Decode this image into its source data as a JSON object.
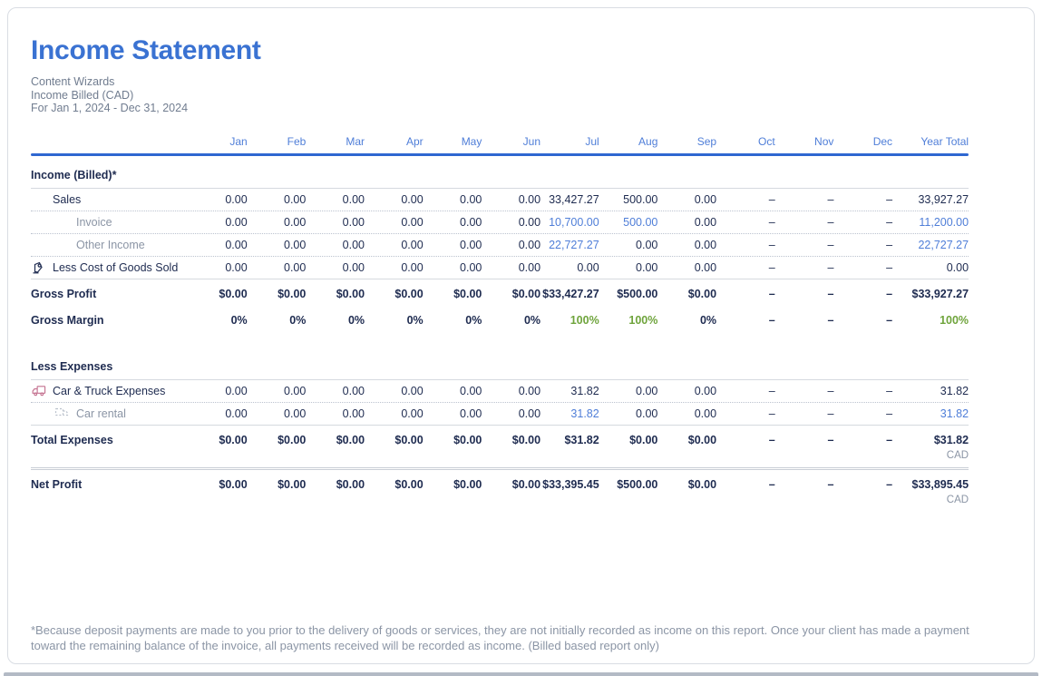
{
  "report": {
    "title": "Income Statement",
    "company": "Content Wizards",
    "basis": "Income Billed (CAD)",
    "period": "For Jan 1, 2024 - Dec 31, 2024"
  },
  "colors": {
    "accent_blue": "#3a72d2",
    "header_blue": "#4f7ed8",
    "underline_blue": "#2f67d1",
    "navy_text": "#1e2b50",
    "link_blue": "#4f7ed8",
    "green": "#6fa43c",
    "muted_gray": "#8b95a5",
    "truck_pink": "#c4708f"
  },
  "table": {
    "columns": [
      "Jan",
      "Feb",
      "Mar",
      "Apr",
      "May",
      "Jun",
      "Jul",
      "Aug",
      "Sep",
      "Oct",
      "Nov",
      "Dec",
      "Year Total"
    ],
    "rows": [
      {
        "label": "Income (Billed)*",
        "style": "section",
        "icon": "none",
        "values": [],
        "links": [],
        "greens": [],
        "cad": "",
        "sep": "solid"
      },
      {
        "label": "Sales",
        "style": "data",
        "icon": "none",
        "values": [
          "0.00",
          "0.00",
          "0.00",
          "0.00",
          "0.00",
          "0.00",
          "33,427.27",
          "500.00",
          "0.00",
          "–",
          "–",
          "–",
          "33,927.27"
        ],
        "links": [],
        "greens": [],
        "cad": "",
        "sep": "dotted"
      },
      {
        "label": "Invoice",
        "style": "sub",
        "icon": "none",
        "values": [
          "0.00",
          "0.00",
          "0.00",
          "0.00",
          "0.00",
          "0.00",
          "10,700.00",
          "500.00",
          "0.00",
          "–",
          "–",
          "–",
          "11,200.00"
        ],
        "links": [
          6,
          7,
          12
        ],
        "greens": [],
        "cad": "",
        "sep": "dotted"
      },
      {
        "label": "Other Income",
        "style": "sub",
        "icon": "none",
        "values": [
          "0.00",
          "0.00",
          "0.00",
          "0.00",
          "0.00",
          "0.00",
          "22,727.27",
          "0.00",
          "0.00",
          "–",
          "–",
          "–",
          "22,727.27"
        ],
        "links": [
          6,
          12
        ],
        "greens": [],
        "cad": "",
        "sep": "dotted"
      },
      {
        "label": "Less Cost of Goods Sold",
        "style": "data",
        "icon": "cost-of-goods-icon",
        "values": [
          "0.00",
          "0.00",
          "0.00",
          "0.00",
          "0.00",
          "0.00",
          "0.00",
          "0.00",
          "0.00",
          "–",
          "–",
          "–",
          "0.00"
        ],
        "links": [],
        "greens": [],
        "cad": "",
        "sep": "solid"
      },
      {
        "label": "Gross Profit",
        "style": "total",
        "icon": "none",
        "values": [
          "$0.00",
          "$0.00",
          "$0.00",
          "$0.00",
          "$0.00",
          "$0.00",
          "$33,427.27",
          "$500.00",
          "$0.00",
          "–",
          "–",
          "–",
          "$33,927.27"
        ],
        "links": [],
        "greens": [],
        "cad": "",
        "sep": "none"
      },
      {
        "label": "Gross Margin",
        "style": "total margin",
        "icon": "none",
        "values": [
          "0%",
          "0%",
          "0%",
          "0%",
          "0%",
          "0%",
          "100%",
          "100%",
          "0%",
          "–",
          "–",
          "–",
          "100%"
        ],
        "links": [],
        "greens": [
          6,
          7,
          12
        ],
        "cad": "",
        "sep": "none"
      },
      {
        "label": "Less Expenses",
        "style": "section gap",
        "icon": "none",
        "values": [],
        "links": [],
        "greens": [],
        "cad": "",
        "sep": "solid"
      },
      {
        "label": "Car & Truck Expenses",
        "style": "data",
        "icon": "truck-icon",
        "values": [
          "0.00",
          "0.00",
          "0.00",
          "0.00",
          "0.00",
          "0.00",
          "31.82",
          "0.00",
          "0.00",
          "–",
          "–",
          "–",
          "31.82"
        ],
        "links": [],
        "greens": [],
        "cad": "",
        "sep": "dotted"
      },
      {
        "label": "Car rental",
        "style": "sub",
        "icon": "truck-outline-icon",
        "values": [
          "0.00",
          "0.00",
          "0.00",
          "0.00",
          "0.00",
          "0.00",
          "31.82",
          "0.00",
          "0.00",
          "–",
          "–",
          "–",
          "31.82"
        ],
        "links": [
          6,
          12
        ],
        "greens": [],
        "cad": "",
        "sep": "solid"
      },
      {
        "label": "Total Expenses",
        "style": "total",
        "icon": "none",
        "values": [
          "$0.00",
          "$0.00",
          "$0.00",
          "$0.00",
          "$0.00",
          "$0.00",
          "$31.82",
          "$0.00",
          "$0.00",
          "–",
          "–",
          "–",
          "$31.82"
        ],
        "links": [],
        "greens": [],
        "cad": "CAD",
        "sep": "double"
      },
      {
        "label": "Net Profit",
        "style": "total",
        "icon": "none",
        "values": [
          "$0.00",
          "$0.00",
          "$0.00",
          "$0.00",
          "$0.00",
          "$0.00",
          "$33,395.45",
          "$500.00",
          "$0.00",
          "–",
          "–",
          "–",
          "$33,895.45"
        ],
        "links": [],
        "greens": [],
        "cad": "CAD",
        "sep": "none"
      }
    ]
  },
  "footnote": "*Because deposit payments are made to you prior to the delivery of goods or services, they are not initially recorded as income on this report. Once your client has made a payment toward the remaining balance of the invoice, all payments received will be recorded as income. (Billed based report only)"
}
